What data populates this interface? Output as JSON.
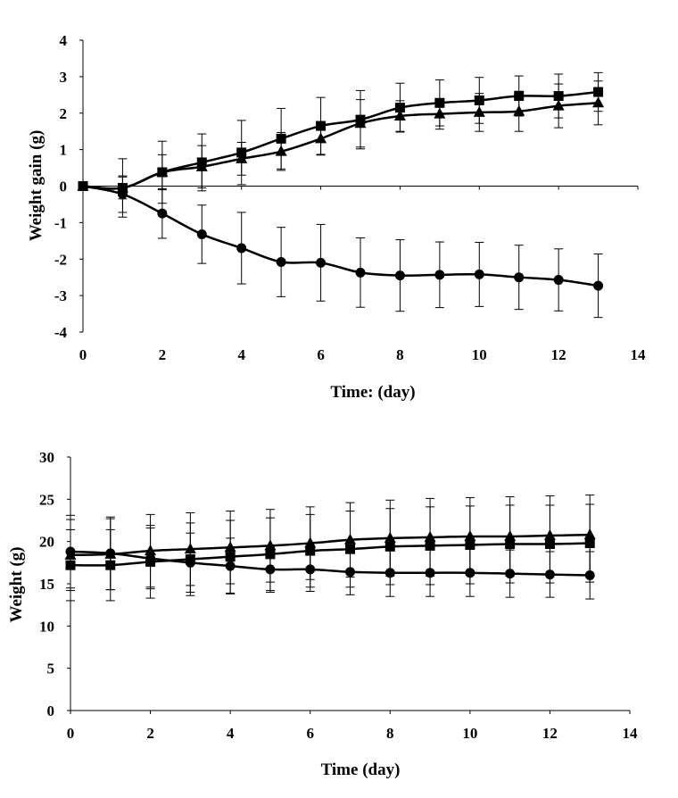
{
  "chart_data": [
    {
      "type": "line",
      "title": "",
      "xlabel": "Time: (day)",
      "ylabel": "Weight gain (g)",
      "xlim": [
        0,
        14
      ],
      "ylim": [
        -4,
        4
      ],
      "x_ticks": [
        0,
        2,
        4,
        6,
        8,
        10,
        12,
        14
      ],
      "y_ticks": [
        -4,
        -3,
        -2,
        -1,
        0,
        1,
        2,
        3,
        4
      ],
      "grid": false,
      "legend": "none",
      "x": [
        0,
        1,
        2,
        3,
        4,
        5,
        6,
        7,
        8,
        9,
        10,
        11,
        12,
        13
      ],
      "series": [
        {
          "marker": "square",
          "values": [
            0,
            -0.05,
            0.38,
            0.65,
            0.92,
            1.3,
            1.65,
            1.82,
            2.15,
            2.28,
            2.35,
            2.47,
            2.47,
            2.58
          ],
          "error": [
            0,
            0.8,
            0.85,
            0.78,
            0.88,
            0.83,
            0.78,
            0.8,
            0.67,
            0.63,
            0.63,
            0.55,
            0.6,
            0.53
          ]
        },
        {
          "marker": "triangle",
          "values": [
            0,
            -0.05,
            0.38,
            0.53,
            0.75,
            0.95,
            1.3,
            1.72,
            1.92,
            1.98,
            2.02,
            2.05,
            2.2,
            2.28
          ],
          "error": [
            0,
            0.3,
            0.48,
            0.58,
            0.45,
            0.52,
            0.45,
            0.65,
            0.42,
            0.42,
            0.52,
            0.55,
            0.6,
            0.6
          ]
        },
        {
          "marker": "circle",
          "values": [
            0,
            -0.22,
            -0.75,
            -1.32,
            -1.7,
            -2.08,
            -2.1,
            -2.37,
            -2.45,
            -2.43,
            -2.42,
            -2.5,
            -2.57,
            -2.73
          ],
          "error": [
            0,
            0.5,
            0.68,
            0.8,
            0.98,
            0.95,
            1.05,
            0.95,
            0.98,
            0.9,
            0.88,
            0.88,
            0.85,
            0.87
          ]
        }
      ]
    },
    {
      "type": "line",
      "title": "",
      "xlabel": "Time (day)",
      "ylabel": "Weight (g)",
      "xlim": [
        0,
        14
      ],
      "ylim": [
        0,
        30
      ],
      "x_ticks": [
        0,
        2,
        4,
        6,
        8,
        10,
        12,
        14
      ],
      "y_ticks": [
        0,
        5,
        10,
        15,
        20,
        25,
        30
      ],
      "grid": false,
      "legend": "none",
      "x": [
        0,
        1,
        2,
        3,
        4,
        5,
        6,
        7,
        8,
        9,
        10,
        11,
        12,
        13
      ],
      "series": [
        {
          "marker": "square",
          "values": [
            17.2,
            17.2,
            17.6,
            17.9,
            18.2,
            18.5,
            18.9,
            19.1,
            19.4,
            19.5,
            19.6,
            19.7,
            19.7,
            19.8
          ],
          "error": [
            4.2,
            4.2,
            4.3,
            4.3,
            4.3,
            4.3,
            4.3,
            4.5,
            4.5,
            4.6,
            4.6,
            4.6,
            4.6,
            4.6
          ]
        },
        {
          "marker": "triangle",
          "values": [
            18.4,
            18.5,
            18.9,
            19.1,
            19.3,
            19.5,
            19.8,
            20.2,
            20.4,
            20.5,
            20.6,
            20.6,
            20.7,
            20.8
          ],
          "error": [
            4.2,
            4.2,
            4.3,
            4.3,
            4.3,
            4.3,
            4.3,
            4.4,
            4.5,
            4.6,
            4.6,
            4.7,
            4.7,
            4.7
          ]
        },
        {
          "marker": "circle",
          "values": [
            18.8,
            18.6,
            18.0,
            17.5,
            17.1,
            16.7,
            16.7,
            16.4,
            16.3,
            16.3,
            16.3,
            16.2,
            16.1,
            16.0
          ],
          "error": [
            4.3,
            4.3,
            3.6,
            3.5,
            3.3,
            2.7,
            2.6,
            2.7,
            2.8,
            2.8,
            2.8,
            2.8,
            2.7,
            2.8
          ]
        }
      ]
    }
  ]
}
